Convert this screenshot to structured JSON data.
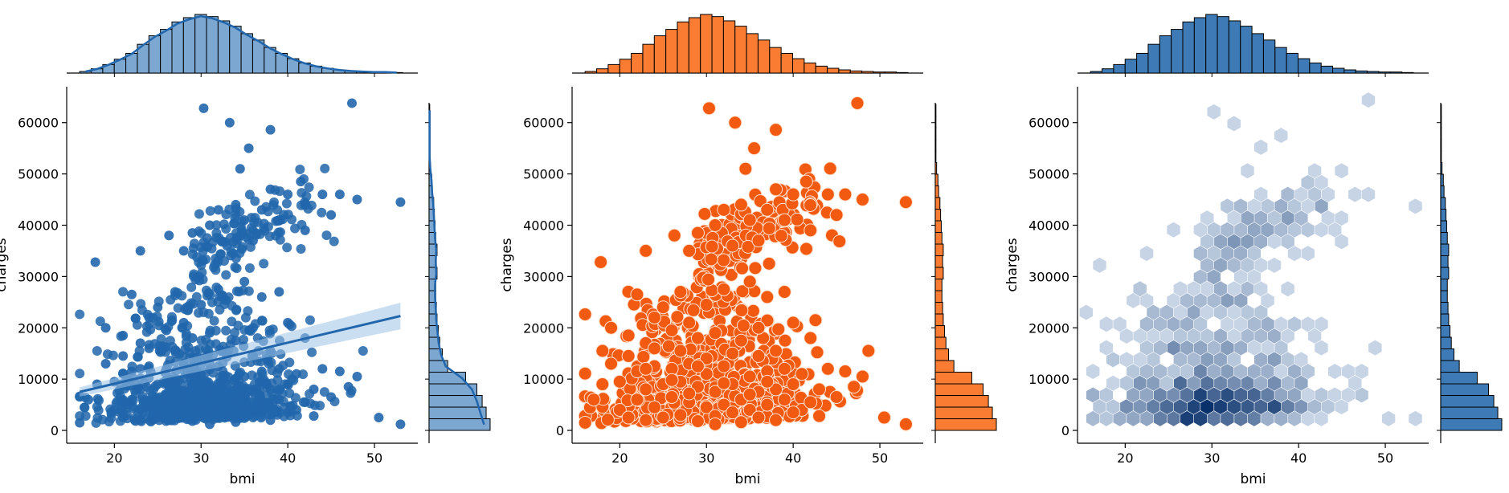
{
  "chart_data": [
    {
      "type": "scatter",
      "variant": "regression",
      "title": "",
      "xlabel": "bmi",
      "ylabel": "charges",
      "xlim": [
        14.5,
        55
      ],
      "ylim": [
        -2500,
        67000
      ],
      "x_ticks": [
        20,
        30,
        40,
        50
      ],
      "y_ticks": [
        0,
        10000,
        20000,
        30000,
        40000,
        50000,
        60000
      ],
      "color": "#2166ac",
      "marginal_color": "#7ba7d1",
      "marginal_kde": true,
      "regression_line": {
        "x": [
          16,
          53
        ],
        "y": [
          7500,
          22300
        ],
        "ci_halfwidth_start": 900,
        "ci_halfwidth_end": 2600
      },
      "x_hist": {
        "bin_start": 16,
        "bin_width": 1.33,
        "counts": [
          3,
          8,
          16,
          26,
          37,
          54,
          70,
          82,
          96,
          104,
          110,
          106,
          98,
          88,
          74,
          62,
          48,
          37,
          27,
          19,
          13,
          9,
          6,
          4,
          3,
          2,
          2,
          1
        ]
      },
      "y_hist": {
        "bin_start": 0,
        "bin_width": 2270,
        "counts": [
          92,
          86,
          80,
          72,
          55,
          28,
          20,
          16,
          14,
          12,
          11,
          10,
          10,
          12,
          11,
          12,
          10,
          9,
          8,
          7,
          5,
          4,
          2,
          1,
          1,
          1,
          1,
          1
        ]
      },
      "points": [
        [
          17.8,
          32800
        ],
        [
          23,
          35000
        ],
        [
          26.3,
          38000
        ],
        [
          30.3,
          62800
        ],
        [
          33.3,
          60000
        ],
        [
          35.5,
          55000
        ],
        [
          38,
          58600
        ],
        [
          47.4,
          63800
        ],
        [
          34.5,
          51000
        ],
        [
          41.5,
          48500
        ],
        [
          44,
          46000
        ],
        [
          46,
          46000
        ],
        [
          53,
          44500
        ],
        [
          45,
          42000
        ],
        [
          48,
          45000
        ],
        [
          31,
          40000
        ],
        [
          29,
          38500
        ],
        [
          34,
          44000
        ],
        [
          37,
          43000
        ],
        [
          39,
          41000
        ],
        [
          33,
          36000
        ],
        [
          28,
          35000
        ],
        [
          36,
          37000
        ],
        [
          35,
          41000
        ],
        [
          32,
          43000
        ],
        [
          40,
          46000
        ],
        [
          38,
          47000
        ],
        [
          42,
          39000
        ],
        [
          27,
          27000
        ],
        [
          25,
          24000
        ],
        [
          22,
          26500
        ],
        [
          24,
          22000
        ],
        [
          28,
          21000
        ],
        [
          30,
          24500
        ],
        [
          32,
          27500
        ],
        [
          35,
          29000
        ],
        [
          37,
          26000
        ],
        [
          39,
          27000
        ],
        [
          19,
          20000
        ],
        [
          21,
          18500
        ],
        [
          23,
          17000
        ],
        [
          26,
          19500
        ],
        [
          29,
          18000
        ],
        [
          31,
          19000
        ],
        [
          34,
          17500
        ],
        [
          36,
          20000
        ],
        [
          40,
          21000
        ],
        [
          42,
          18000
        ],
        [
          44,
          12000
        ],
        [
          46,
          11500
        ],
        [
          48,
          10500
        ],
        [
          50.5,
          2500
        ],
        [
          53,
          1200
        ],
        [
          45,
          6500
        ],
        [
          41,
          4000
        ],
        [
          43,
          8000
        ],
        [
          47,
          8500
        ],
        [
          16,
          1500
        ],
        [
          17,
          6000
        ],
        [
          18,
          9000
        ],
        [
          19,
          13000
        ],
        [
          20,
          4000
        ],
        [
          20,
          9500
        ],
        [
          21,
          14500
        ],
        [
          22,
          6000
        ],
        [
          22,
          11500
        ],
        [
          23,
          2000
        ],
        [
          23,
          8000
        ],
        [
          24,
          12500
        ],
        [
          24,
          4500
        ],
        [
          25,
          9000
        ],
        [
          25,
          2500
        ],
        [
          26,
          6500
        ],
        [
          26,
          12000
        ],
        [
          27,
          3000
        ],
        [
          27,
          9500
        ],
        [
          28,
          5500
        ],
        [
          28,
          13000
        ],
        [
          29,
          1800
        ],
        [
          29,
          8500
        ],
        [
          30,
          4500
        ],
        [
          30,
          11000
        ],
        [
          31,
          2800
        ],
        [
          31,
          7500
        ],
        [
          32,
          5000
        ],
        [
          32,
          12500
        ],
        [
          33,
          3500
        ],
        [
          33,
          9000
        ],
        [
          34,
          6000
        ],
        [
          34,
          1600
        ],
        [
          35,
          10500
        ],
        [
          35,
          4000
        ],
        [
          36,
          7500
        ],
        [
          36,
          2500
        ],
        [
          37,
          11500
        ],
        [
          37,
          5000
        ],
        [
          38,
          8000
        ],
        [
          38,
          2000
        ],
        [
          39,
          12000
        ],
        [
          39,
          6000
        ],
        [
          40,
          3500
        ],
        [
          40,
          9000
        ],
        [
          41,
          11000
        ],
        [
          42,
          5500
        ],
        [
          43,
          2800
        ],
        [
          36,
          14500
        ],
        [
          33,
          15000
        ],
        [
          30,
          14000
        ],
        [
          27,
          15500
        ],
        [
          24,
          16000
        ],
        [
          38,
          15500
        ],
        [
          21,
          2500
        ],
        [
          31,
          1200
        ],
        [
          35,
          7000
        ],
        [
          29,
          12500
        ],
        [
          26,
          9800
        ],
        [
          32,
          9200
        ],
        [
          37,
          9500
        ],
        [
          23,
          12000
        ],
        [
          28,
          7200
        ]
      ]
    },
    {
      "type": "scatter",
      "variant": "large-markers",
      "title": "",
      "xlabel": "bmi",
      "ylabel": "charges",
      "xlim": [
        14.5,
        55
      ],
      "ylim": [
        -2500,
        67000
      ],
      "x_ticks": [
        20,
        30,
        40,
        50
      ],
      "y_ticks": [
        0,
        10000,
        20000,
        30000,
        40000,
        50000,
        60000
      ],
      "color": "#f25a12",
      "edge_color": "#ffe0cc",
      "marginal_color": "#fa7b32",
      "marginal_kde": false,
      "x_hist": {
        "bin_start": 16,
        "bin_width": 1.33,
        "counts": [
          3,
          8,
          16,
          26,
          37,
          54,
          70,
          82,
          96,
          104,
          110,
          106,
          98,
          88,
          74,
          62,
          48,
          37,
          27,
          19,
          13,
          9,
          6,
          4,
          3,
          2,
          2,
          1
        ]
      },
      "y_hist": {
        "bin_start": 0,
        "bin_width": 2270,
        "counts": [
          92,
          86,
          80,
          72,
          55,
          28,
          20,
          16,
          14,
          12,
          11,
          10,
          10,
          12,
          11,
          12,
          10,
          9,
          8,
          7,
          5,
          4,
          2,
          1,
          1,
          1,
          1,
          1
        ]
      }
    },
    {
      "type": "heatmap",
      "variant": "hexbin",
      "title": "",
      "xlabel": "bmi",
      "ylabel": "charges",
      "xlim": [
        14.5,
        55
      ],
      "ylim": [
        -2500,
        67000
      ],
      "x_ticks": [
        20,
        30,
        40,
        50
      ],
      "y_ticks": [
        0,
        10000,
        20000,
        30000,
        40000,
        50000,
        60000
      ],
      "color_low": "#e8f1fb",
      "color_high": "#08306b",
      "marginal_color": "#3e7bb6",
      "marginal_kde": false,
      "x_hist": {
        "bin_start": 16,
        "bin_width": 1.33,
        "counts": [
          3,
          8,
          16,
          26,
          37,
          54,
          70,
          82,
          96,
          104,
          110,
          106,
          98,
          88,
          74,
          62,
          48,
          37,
          27,
          19,
          13,
          9,
          6,
          4,
          3,
          2,
          2,
          1
        ]
      },
      "y_hist": {
        "bin_start": 0,
        "bin_width": 2270,
        "counts": [
          92,
          86,
          80,
          72,
          55,
          28,
          20,
          16,
          14,
          12,
          11,
          10,
          10,
          12,
          11,
          12,
          10,
          9,
          8,
          7,
          5,
          4,
          2,
          1,
          1,
          1,
          1,
          1
        ]
      }
    }
  ]
}
